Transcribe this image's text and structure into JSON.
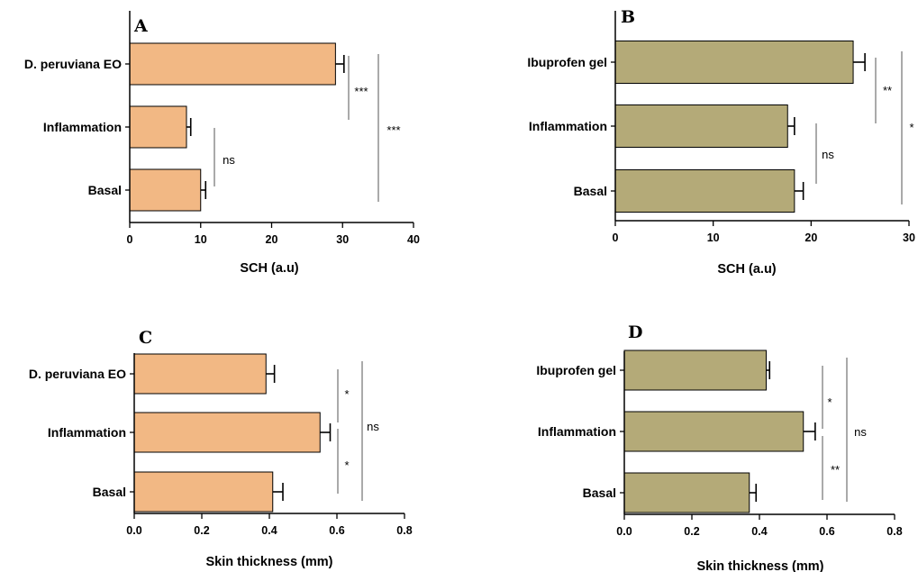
{
  "chart_data": [
    {
      "type": "bar",
      "orientation": "horizontal",
      "panel_label": "A",
      "categories": [
        "D. peruviana EO",
        "Inflammation",
        "Basal"
      ],
      "values": [
        29.0,
        8.0,
        10.0
      ],
      "errors": [
        1.2,
        0.6,
        0.7
      ],
      "xlabel": "SCH (a.u)",
      "xlim": [
        0,
        40
      ],
      "xticks": [
        "0",
        "10",
        "20",
        "30",
        "40"
      ],
      "bar_color": "#f2b884",
      "significance": [
        {
          "label": "***"
        },
        {
          "label": "ns"
        },
        {
          "label": "***"
        }
      ]
    },
    {
      "type": "bar",
      "orientation": "horizontal",
      "panel_label": "B",
      "categories": [
        "Ibuprofen gel",
        "Inflammation",
        "Basal"
      ],
      "values": [
        24.3,
        17.6,
        18.3
      ],
      "errors": [
        1.2,
        0.7,
        0.9
      ],
      "xlabel": "SCH (a.u)",
      "xlim": [
        0,
        30
      ],
      "xticks": [
        "0",
        "10",
        "20",
        "30"
      ],
      "bar_color": "#b4aa78",
      "significance": [
        {
          "label": "**"
        },
        {
          "label": "ns"
        },
        {
          "label": "*"
        }
      ]
    },
    {
      "type": "bar",
      "orientation": "horizontal",
      "panel_label": "C",
      "categories": [
        "D. peruviana EO",
        "Inflammation",
        "Basal"
      ],
      "values": [
        0.39,
        0.55,
        0.41
      ],
      "errors": [
        0.025,
        0.03,
        0.03
      ],
      "xlabel": "Skin thickness (mm)",
      "xlim": [
        0,
        0.8
      ],
      "xticks": [
        "0.0",
        "0.2",
        "0.4",
        "0.6",
        "0.8"
      ],
      "bar_color": "#f2b884",
      "significance": [
        {
          "label": "*"
        },
        {
          "label": "*"
        },
        {
          "label": "ns"
        }
      ]
    },
    {
      "type": "bar",
      "orientation": "horizontal",
      "panel_label": "D",
      "categories": [
        "Ibuprofen gel",
        "Inflammation",
        "Basal"
      ],
      "values": [
        0.42,
        0.53,
        0.37
      ],
      "errors": [
        0.01,
        0.035,
        0.02
      ],
      "xlabel": "Skin thickness (mm)",
      "xlim": [
        0,
        0.8
      ],
      "xticks": [
        "0.0",
        "0.2",
        "0.4",
        "0.6",
        "0.8"
      ],
      "bar_color": "#b4aa78",
      "significance": [
        {
          "label": "*"
        },
        {
          "label": "**"
        },
        {
          "label": "ns"
        }
      ]
    }
  ]
}
